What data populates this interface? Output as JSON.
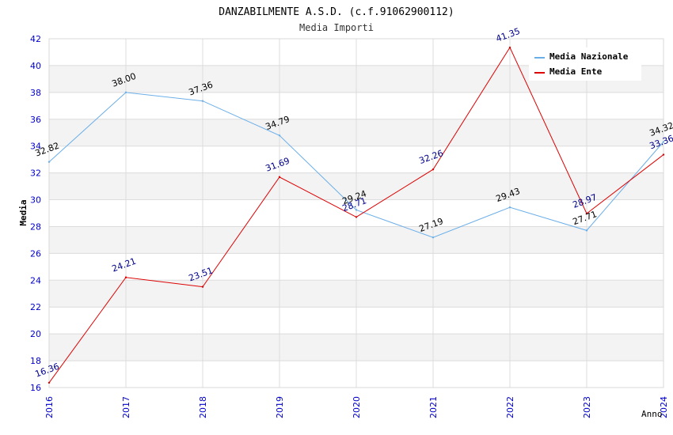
{
  "chart_data": {
    "type": "line",
    "title": "DANZABILMENTE A.S.D. (c.f.91062900112)",
    "subtitle": "Media Importi",
    "xlabel": "Anno",
    "ylabel": "Media",
    "categories": [
      "2016",
      "2017",
      "2018",
      "2019",
      "2020",
      "2021",
      "2022",
      "2023",
      "2024"
    ],
    "ylim": [
      16,
      42
    ],
    "yticks": [
      16,
      18,
      20,
      22,
      24,
      26,
      28,
      30,
      32,
      34,
      36,
      38,
      40,
      42
    ],
    "grid": true,
    "legend_position": "top-right",
    "series": [
      {
        "name": "Media Nazionale",
        "color": "#6aaee8",
        "label_color": "#000000",
        "values": [
          32.82,
          38.0,
          37.36,
          34.79,
          29.24,
          27.19,
          29.43,
          27.71,
          34.32
        ],
        "labels": [
          "32.82",
          "38.00",
          "37.36",
          "34.79",
          "29.24",
          "27.19",
          "29.43",
          "27.71",
          "34.32"
        ]
      },
      {
        "name": "Media Ente",
        "color": "#dd0000",
        "label_color": "#00008b",
        "values": [
          16.36,
          24.21,
          23.51,
          31.69,
          28.71,
          32.26,
          41.35,
          28.97,
          33.36
        ],
        "labels": [
          "16.36",
          "24.21",
          "23.51",
          "31.69",
          "28.71",
          "32.26",
          "41.35",
          "28.97",
          "33.36"
        ]
      }
    ]
  }
}
